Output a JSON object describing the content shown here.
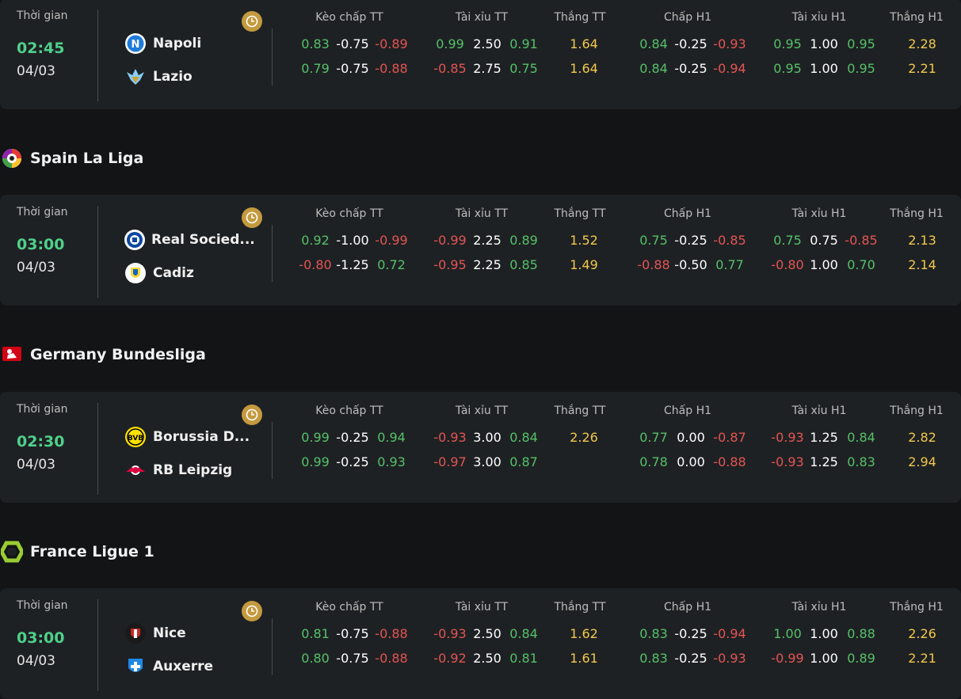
{
  "columns": [
    "Kèo chấp TT",
    "Tài xỉu TT",
    "Thắng TT",
    "Chấp H1",
    "Tài xỉu H1",
    "Thắng H1"
  ],
  "time_label": "Thời gian",
  "matches": [
    {
      "time": "02:45",
      "date": "04/03",
      "home": "Napoli",
      "away": "Lazio",
      "rows": [
        [
          "0.83",
          "-0.75",
          "-0.89",
          "0.99",
          "2.50",
          "0.91",
          "1.64",
          "0.84",
          "-0.25",
          "-0.93",
          "0.95",
          "1.00",
          "0.95",
          "2.28"
        ],
        [
          "0.79",
          "-0.75",
          "-0.88",
          "-0.85",
          "2.75",
          "0.75",
          "1.64",
          "0.84",
          "-0.25",
          "-0.94",
          "0.95",
          "1.00",
          "0.95",
          "2.21"
        ]
      ]
    },
    {
      "league": "Spain La Liga",
      "time": "03:00",
      "date": "04/03",
      "home": "Real Socied...",
      "away": "Cadiz",
      "rows": [
        [
          "0.92",
          "-1.00",
          "-0.99",
          "-0.99",
          "2.25",
          "0.89",
          "1.52",
          "0.75",
          "-0.25",
          "-0.85",
          "0.75",
          "0.75",
          "-0.85",
          "2.13"
        ],
        [
          "-0.80",
          "-1.25",
          "0.72",
          "-0.95",
          "2.25",
          "0.85",
          "1.49",
          "-0.88",
          "-0.50",
          "0.77",
          "-0.80",
          "1.00",
          "0.70",
          "2.14"
        ]
      ]
    },
    {
      "league": "Germany Bundesliga",
      "time": "02:30",
      "date": "04/03",
      "home": "Borussia D...",
      "away": "RB Leipzig",
      "rows": [
        [
          "0.99",
          "-0.25",
          "0.94",
          "-0.93",
          "3.00",
          "0.84",
          "2.26",
          "0.77",
          "0.00",
          "-0.87",
          "-0.93",
          "1.25",
          "0.84",
          "2.82"
        ],
        [
          "0.99",
          "-0.25",
          "0.93",
          "-0.97",
          "3.00",
          "0.87",
          "",
          "0.78",
          "0.00",
          "-0.88",
          "-0.93",
          "1.25",
          "0.83",
          "2.94"
        ]
      ]
    },
    {
      "league": "France Ligue 1",
      "time": "03:00",
      "date": "04/03",
      "home": "Nice",
      "away": "Auxerre",
      "rows": [
        [
          "0.81",
          "-0.75",
          "-0.88",
          "-0.93",
          "2.50",
          "0.84",
          "1.62",
          "0.83",
          "-0.25",
          "-0.94",
          "1.00",
          "1.00",
          "0.88",
          "2.26"
        ],
        [
          "0.80",
          "-0.75",
          "-0.88",
          "-0.92",
          "2.50",
          "0.81",
          "1.61",
          "0.83",
          "-0.25",
          "-0.93",
          "-0.99",
          "1.00",
          "0.89",
          "2.21"
        ]
      ]
    }
  ],
  "colors": {
    "positive": "#55c16a",
    "negative": "#e45454",
    "neutral": "#ffffff",
    "win": "#f2c94c",
    "time": "#4fd08b",
    "clock": "#c49a3f"
  }
}
